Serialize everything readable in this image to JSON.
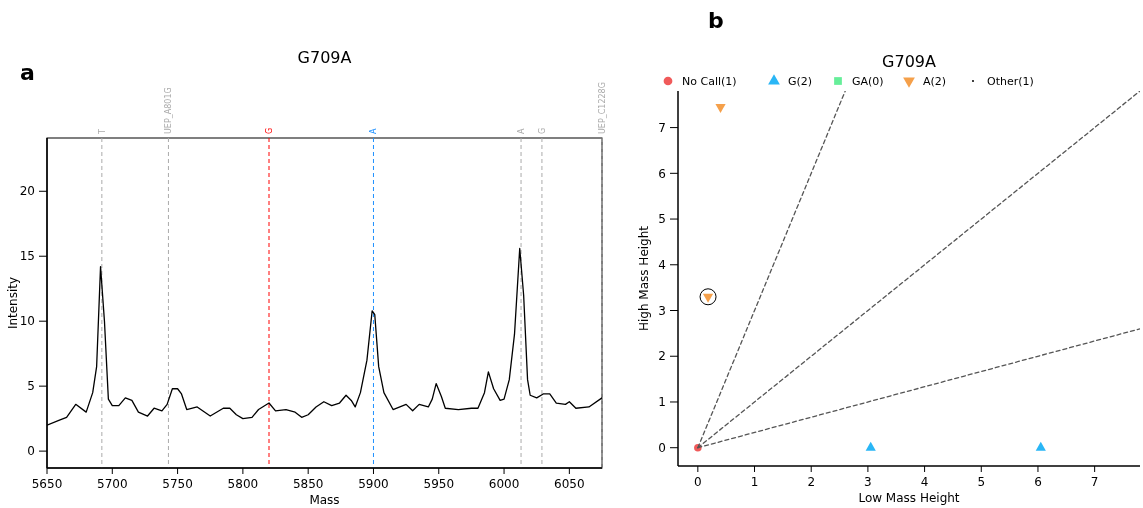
{
  "chart_data": [
    {
      "type": "line",
      "title": "G709A",
      "xlabel": "Mass",
      "ylabel": "Intensity",
      "annotations": [
        "a"
      ],
      "xlim": [
        5650,
        6075
      ],
      "ylim": [
        -1.3,
        24.1
      ],
      "xticks": [
        5650,
        5700,
        5750,
        5800,
        5850,
        5900,
        5950,
        6000,
        6050
      ],
      "yticks": [
        0,
        5,
        10,
        15,
        20
      ],
      "grid": false,
      "legend": false,
      "x": [
        5650,
        5660,
        5665,
        5672,
        5680,
        5685,
        5688,
        5691,
        5694,
        5697,
        5700,
        5705,
        5710,
        5715,
        5720,
        5727,
        5732,
        5738,
        5742,
        5746,
        5750,
        5753,
        5757,
        5765,
        5775,
        5785,
        5790,
        5795,
        5800,
        5807,
        5812,
        5820,
        5825,
        5833,
        5840,
        5845,
        5850,
        5856,
        5862,
        5868,
        5874,
        5879,
        5883,
        5886,
        5890,
        5895,
        5899,
        5901,
        5904,
        5908,
        5915,
        5925,
        5930,
        5935,
        5942,
        5945,
        5948,
        5952,
        5955,
        5965,
        5975,
        5980,
        5985,
        5988,
        5992,
        5997,
        6000,
        6004,
        6008,
        6012,
        6015,
        6018,
        6020,
        6025,
        6030,
        6035,
        6040,
        6047,
        6050,
        6055,
        6065,
        6075
      ],
      "series": [
        {
          "color": "#000000",
          "values": [
            2.0,
            2.4,
            2.6,
            3.6,
            3.0,
            4.5,
            6.5,
            14.2,
            10,
            4,
            3.5,
            3.5,
            4.1,
            3.9,
            3.0,
            2.7,
            3.3,
            3.1,
            3.6,
            4.8,
            4.8,
            4.4,
            3.2,
            3.4,
            2.7,
            3.3,
            3.3,
            2.8,
            2.5,
            2.6,
            3.2,
            3.7,
            3.1,
            3.2,
            3.0,
            2.6,
            2.8,
            3.4,
            3.8,
            3.5,
            3.7,
            4.3,
            3.9,
            3.4,
            4.5,
            7.0,
            10.8,
            10.5,
            6.5,
            4.5,
            3.2,
            3.6,
            3.1,
            3.6,
            3.4,
            4.0,
            5.2,
            4.2,
            3.3,
            3.2,
            3.3,
            3.3,
            4.5,
            6.1,
            4.8,
            3.9,
            4.0,
            5.5,
            9.0,
            15.6,
            12.0,
            5.5,
            4.3,
            4.1,
            4.4,
            4.4,
            3.7,
            3.6,
            3.8,
            3.3,
            3.4,
            4.1
          ]
        }
      ],
      "ref_lines": [
        {
          "axis": "x",
          "value": 5692,
          "label": "T",
          "color": "#aaaaaa",
          "line_style": "dashed"
        },
        {
          "axis": "x",
          "value": 5743,
          "label": "UEP_A801G",
          "color": "#aaaaaa",
          "line_style": "dashed"
        },
        {
          "axis": "x",
          "value": 5820,
          "label": "G",
          "color": "#ff0000",
          "line_style": "dashed"
        },
        {
          "axis": "x",
          "value": 5900,
          "label": "A",
          "color": "#1e90ff",
          "line_style": "dashed"
        },
        {
          "axis": "x",
          "value": 6013,
          "label": "A",
          "color": "#aaaaaa",
          "line_style": "dashed"
        },
        {
          "axis": "x",
          "value": 6029,
          "label": "G",
          "color": "#aaaaaa",
          "line_style": "dashed"
        },
        {
          "axis": "x",
          "value": 6075,
          "label": "UEP_C1228G",
          "color": "#aaaaaa",
          "line_style": "dashed"
        }
      ]
    },
    {
      "type": "scatter",
      "title": "G709A",
      "xlabel": "Low Mass Height",
      "ylabel": "High Mass Height",
      "annotations": [
        "b"
      ],
      "xlim": [
        -0.35,
        7.8
      ],
      "ylim": [
        -0.4,
        7.8
      ],
      "xticks": [
        0,
        1,
        2,
        3,
        4,
        5,
        6,
        7
      ],
      "yticks": [
        0,
        1,
        2,
        3,
        4,
        5,
        6,
        7
      ],
      "grid": false,
      "legend": "top",
      "series": [
        {
          "name": "No Call(1)",
          "color": "#f05a5a",
          "marker": "circle",
          "x": [
            0
          ],
          "values": [
            0
          ]
        },
        {
          "name": "G(2)",
          "color": "#29b6f6",
          "marker": "triangle",
          "x": [
            3.05,
            6.05
          ],
          "values": [
            0,
            0
          ]
        },
        {
          "name": "GA(0)",
          "color": "#66ee99",
          "marker": "square"
        },
        {
          "name": "A(2)",
          "color": "#f5a04a",
          "marker": "triangle-down",
          "x": [
            0.4,
            0.18
          ],
          "values": [
            7.45,
            3.3
          ]
        },
        {
          "name": "Other(1)",
          "color": "#000000",
          "marker": "point"
        },
        {
          "type": "line",
          "color": "#555555",
          "line_style": "dashed",
          "x": [
            0,
            2.6
          ],
          "values": [
            0,
            7.8
          ]
        },
        {
          "type": "line",
          "color": "#555555",
          "line_style": "dashed",
          "x": [
            0,
            7.8
          ],
          "values": [
            0,
            7.8
          ]
        },
        {
          "type": "line",
          "color": "#555555",
          "line_style": "dashed",
          "x": [
            0,
            7.8
          ],
          "values": [
            0,
            2.6
          ]
        }
      ]
    }
  ]
}
